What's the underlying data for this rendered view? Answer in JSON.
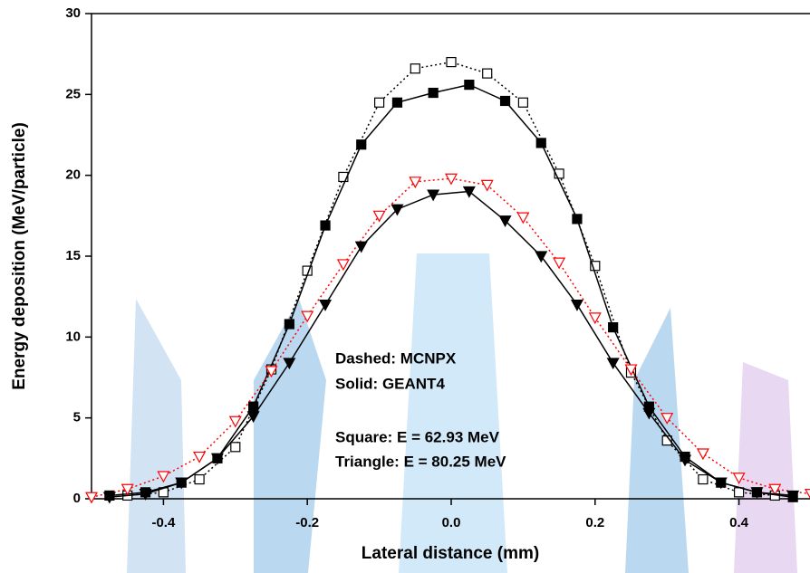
{
  "chart_data": {
    "type": "scatter-line",
    "x_label": "Lateral distance (mm)",
    "y_label": "Energy deposition (MeV/particle)",
    "xlim": [
      -0.5,
      0.5
    ],
    "ylim": [
      0,
      30
    ],
    "xticks": [
      -0.4,
      -0.2,
      {
        "value": 0,
        "label": "0.0"
      },
      0.2,
      0.4
    ],
    "yticks": [
      0,
      5,
      10,
      15,
      20,
      25,
      30
    ],
    "annotations": [
      "Dashed: MCNPX",
      "Solid: GEANT4",
      "Square: E = 62.93 MeV",
      "Triangle: E = 80.25 MeV"
    ],
    "series": [
      {
        "color": "#000000",
        "marker": "square",
        "filled": false,
        "dash": "dotted",
        "x": [
          -0.45,
          -0.4,
          -0.35,
          -0.3,
          -0.25,
          -0.2,
          -0.15,
          -0.1,
          -0.05,
          0,
          0.05,
          0.1,
          0.15,
          0.2,
          0.25,
          0.3,
          0.35,
          0.4,
          0.45
        ],
        "values": [
          0.2,
          0.4,
          1.2,
          3.2,
          8.0,
          14.1,
          19.9,
          24.5,
          26.6,
          27.0,
          26.3,
          24.5,
          20.1,
          14.4,
          7.8,
          3.6,
          1.2,
          0.4,
          0.2
        ]
      },
      {
        "color": "#000000",
        "marker": "square",
        "filled": true,
        "dash": "solid",
        "x": [
          -0.475,
          -0.425,
          -0.375,
          -0.325,
          -0.275,
          -0.225,
          -0.175,
          -0.125,
          -0.075,
          -0.025,
          0.025,
          0.075,
          0.125,
          0.175,
          0.225,
          0.275,
          0.325,
          0.375,
          0.425,
          0.475
        ],
        "values": [
          0.2,
          0.4,
          1.0,
          2.5,
          5.7,
          10.8,
          16.9,
          21.9,
          24.5,
          25.1,
          25.6,
          24.6,
          22.0,
          17.3,
          10.6,
          5.7,
          2.6,
          1.0,
          0.4,
          0.1
        ]
      },
      {
        "color": "#ff0000",
        "marker": "triangle-down",
        "filled": false,
        "dash": "dotted",
        "x": [
          -0.5,
          -0.45,
          -0.4,
          -0.35,
          -0.3,
          -0.25,
          -0.2,
          -0.15,
          -0.1,
          -0.05,
          0,
          0.05,
          0.1,
          0.15,
          0.2,
          0.25,
          0.3,
          0.35,
          0.4,
          0.45,
          0.5
        ],
        "values": [
          0.1,
          0.6,
          1.4,
          2.6,
          4.8,
          7.9,
          11.3,
          14.5,
          17.5,
          19.6,
          19.8,
          19.4,
          17.4,
          14.6,
          11.2,
          8.0,
          5.0,
          2.8,
          1.3,
          0.6,
          0.3
        ]
      },
      {
        "color": "#000000",
        "marker": "triangle-down",
        "filled": true,
        "dash": "solid",
        "x": [
          -0.475,
          -0.425,
          -0.375,
          -0.325,
          -0.275,
          -0.225,
          -0.175,
          -0.125,
          -0.075,
          -0.025,
          0.025,
          0.075,
          0.125,
          0.175,
          0.225,
          0.275,
          0.325,
          0.375,
          0.425,
          0.475
        ],
        "values": [
          0.1,
          0.3,
          1.0,
          2.5,
          5.1,
          8.4,
          12.0,
          15.6,
          17.9,
          18.8,
          19.0,
          17.2,
          15.0,
          12.0,
          8.4,
          5.3,
          2.4,
          1.0,
          0.4,
          0.2
        ]
      }
    ]
  }
}
